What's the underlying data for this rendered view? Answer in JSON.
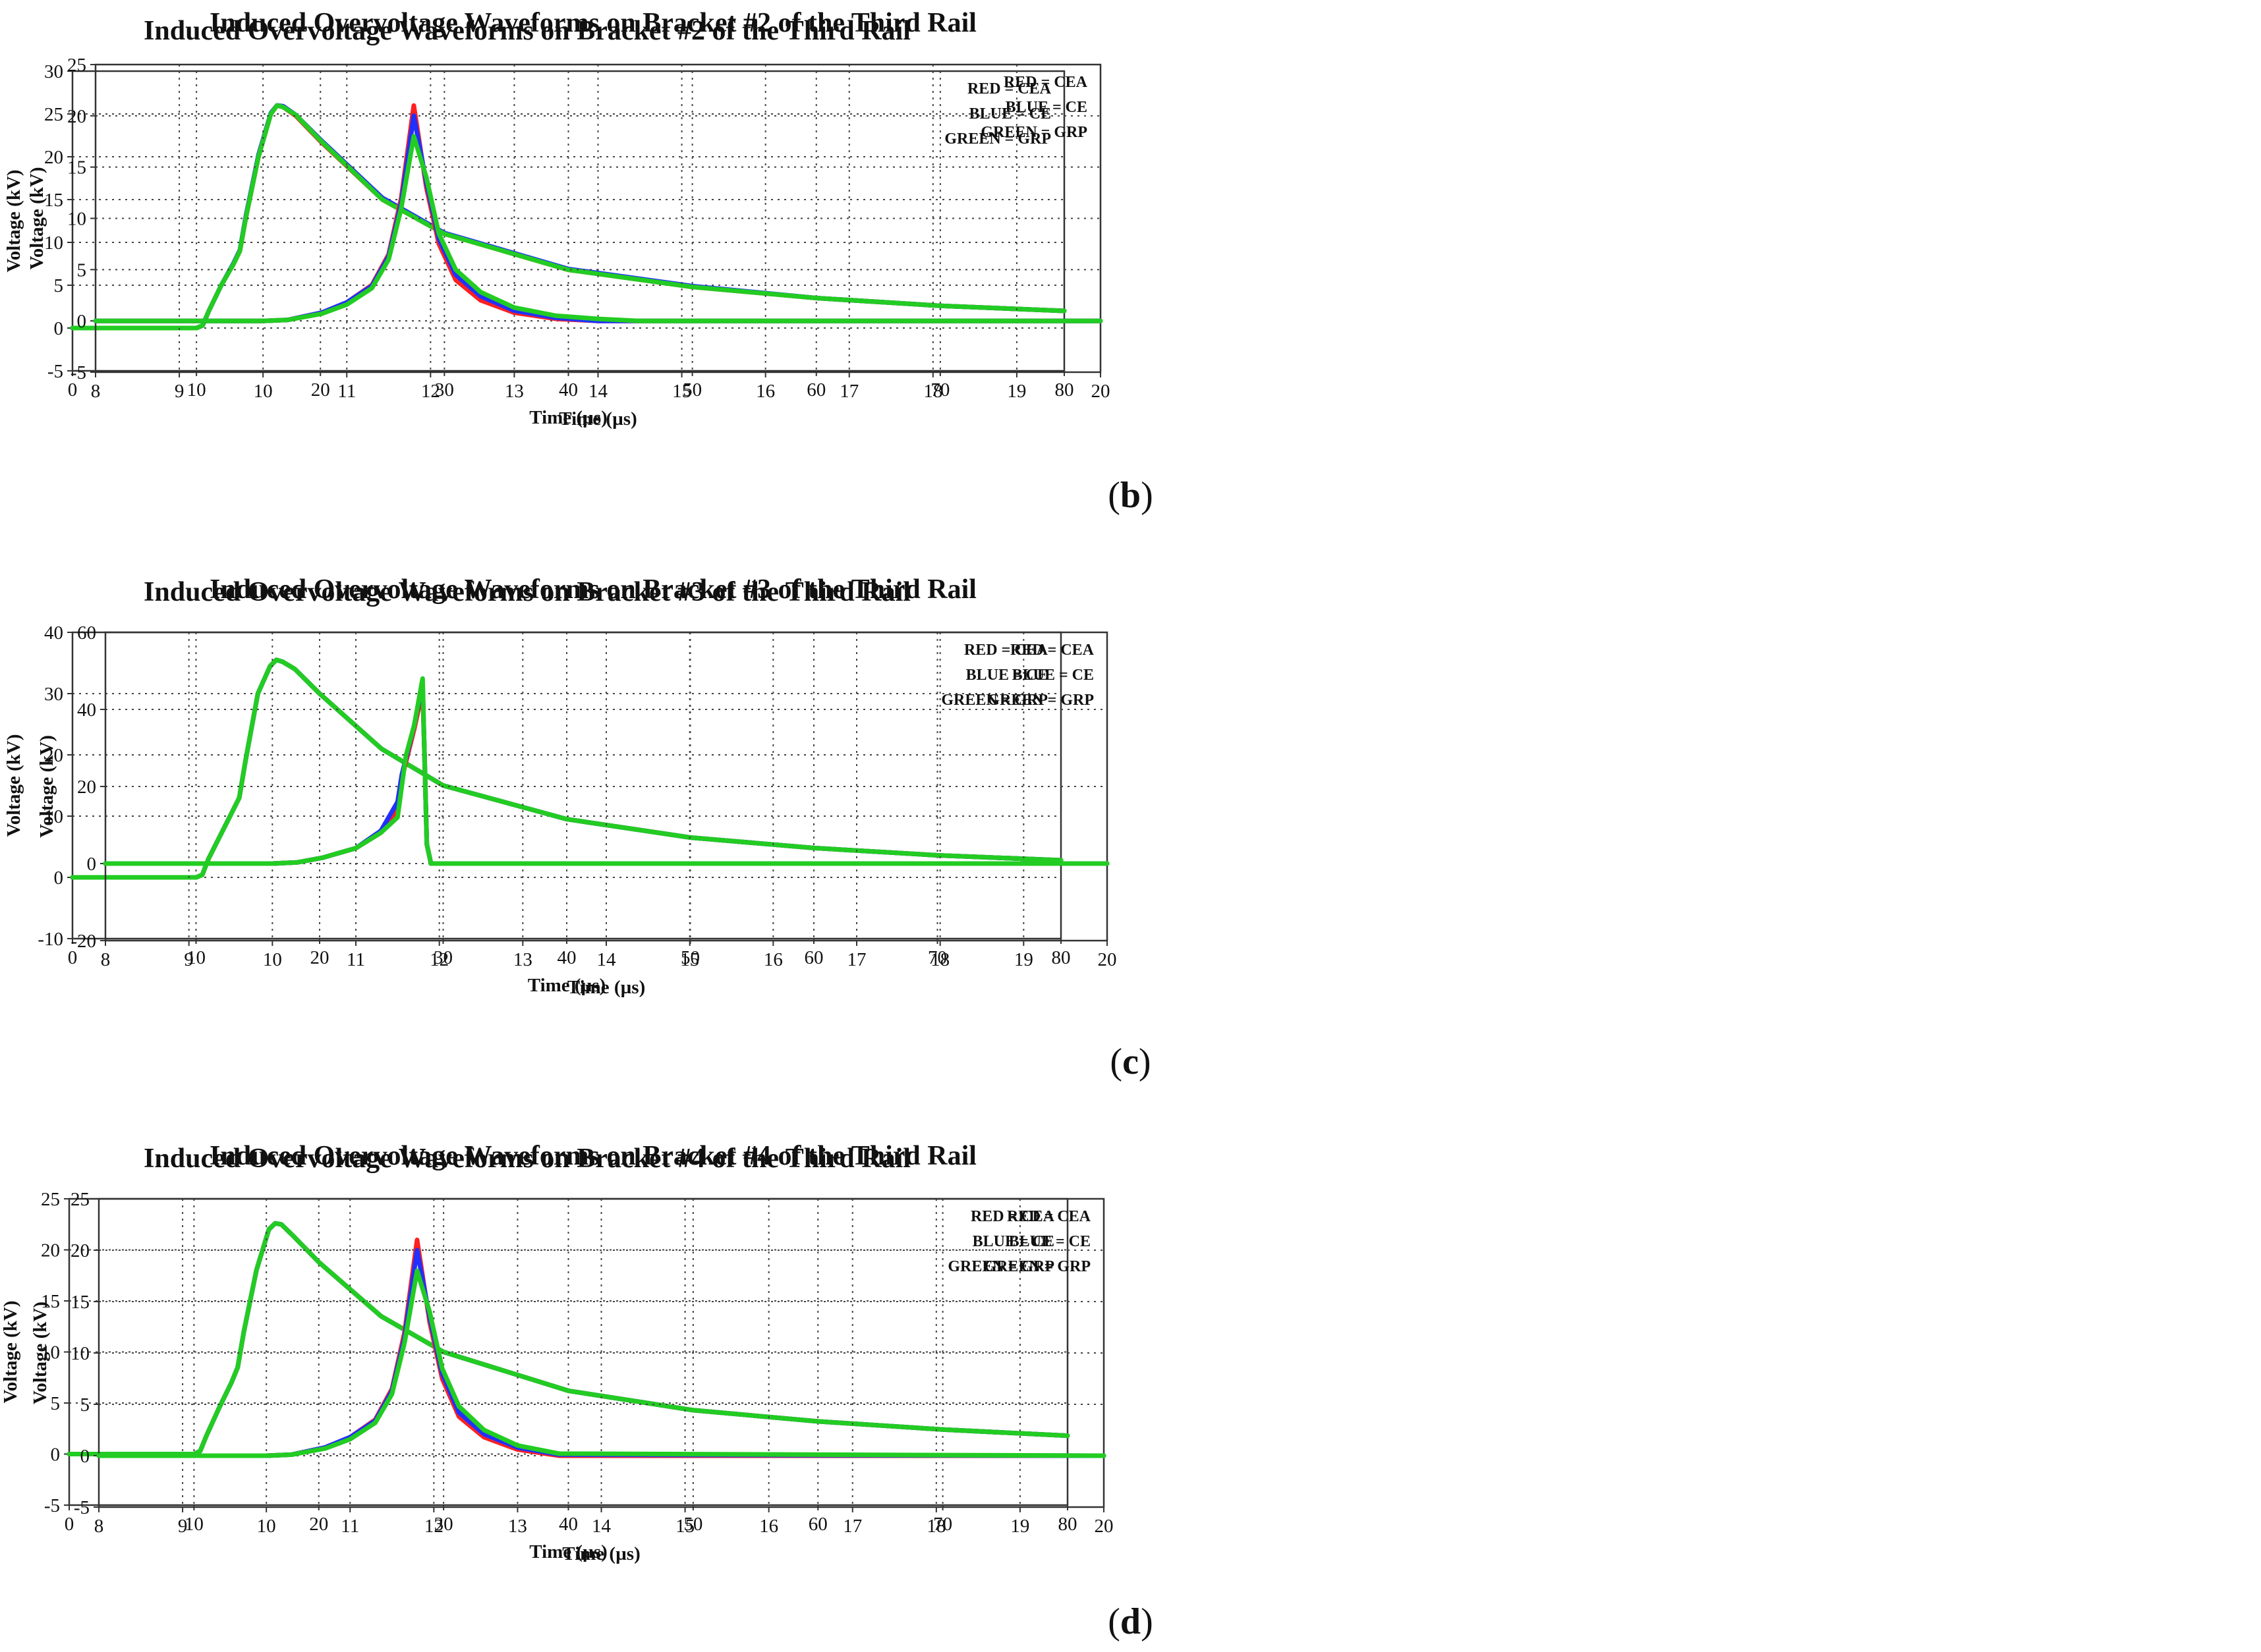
{
  "captions": [
    {
      "open": "(",
      "letter": "b",
      "close": ")"
    },
    {
      "open": "(",
      "letter": "c",
      "close": ")"
    },
    {
      "open": "(",
      "letter": "d",
      "close": ")"
    }
  ],
  "chart_data": [
    {
      "type": "line",
      "title": "Induced Overvoltage Waveforms on Bracket #2 of the Third Rail",
      "xlabel": "Time (µs)",
      "ylabel": "Voltage (kV)",
      "xlim": [
        0,
        80
      ],
      "ylim": [
        -5,
        30
      ],
      "xticks": [
        0,
        10,
        20,
        30,
        40,
        50,
        60,
        70,
        80
      ],
      "yticks": [
        -5,
        0,
        5,
        10,
        15,
        20,
        25,
        30
      ],
      "grid": true,
      "legend": [
        "RED = CEA",
        "BLUE = CE",
        "GREEN = GRP"
      ],
      "series": [
        {
          "name": "CEA",
          "color": "#ff2020",
          "x": [
            0,
            10,
            10.5,
            11,
            12,
            13,
            13.5,
            14,
            15,
            16,
            16.5,
            17,
            18,
            20,
            25,
            30,
            40,
            50,
            60,
            70,
            80
          ],
          "y": [
            0,
            0,
            0.3,
            2,
            5,
            7.5,
            9,
            13,
            20,
            25,
            26,
            25.8,
            24.8,
            21.8,
            15,
            11,
            6.8,
            4.8,
            3.5,
            2.6,
            2
          ]
        },
        {
          "name": "CE",
          "color": "#2030ff",
          "x": [
            0,
            10,
            10.5,
            11,
            12,
            13,
            13.5,
            14,
            15,
            16,
            16.5,
            17,
            18,
            20,
            25,
            30,
            40,
            50,
            60,
            70,
            80
          ],
          "y": [
            0,
            0,
            0.3,
            2,
            5,
            7.6,
            9.1,
            13.2,
            20.2,
            25.1,
            26,
            25.9,
            24.9,
            22,
            15.2,
            11.1,
            6.9,
            4.9,
            3.5,
            2.6,
            2
          ]
        },
        {
          "name": "GRP",
          "color": "#22cc22",
          "x": [
            0,
            10,
            10.5,
            11,
            12,
            13,
            13.5,
            14,
            15,
            16,
            16.5,
            17,
            18,
            20,
            25,
            30,
            40,
            50,
            60,
            70,
            80
          ],
          "y": [
            0,
            0,
            0.3,
            2,
            5,
            7.5,
            9,
            13,
            20,
            25,
            26,
            25.8,
            24.9,
            21.9,
            15,
            11,
            6.8,
            4.8,
            3.5,
            2.6,
            2
          ]
        }
      ]
    },
    {
      "type": "line",
      "title": "Induced Overvoltage Waveforms on Bracket #2 of the Third Rail",
      "xlabel": "Time (µs)",
      "ylabel": "Voltage (kV)",
      "xlim": [
        8,
        20
      ],
      "ylim": [
        -5,
        25
      ],
      "xticks": [
        8,
        9,
        10,
        11,
        12,
        13,
        14,
        15,
        16,
        17,
        18,
        19,
        20
      ],
      "yticks": [
        -5,
        0,
        5,
        10,
        15,
        20,
        25
      ],
      "grid": true,
      "legend": [
        "RED = CEA",
        "BLUE = CE",
        "GREEN = GRP"
      ],
      "series": [
        {
          "name": "CEA",
          "color": "#ff2020",
          "x": [
            8,
            10,
            10.3,
            10.7,
            11,
            11.3,
            11.5,
            11.65,
            11.8,
            11.95,
            12.1,
            12.3,
            12.6,
            13,
            13.5,
            14,
            20
          ],
          "y": [
            0,
            0,
            0.1,
            0.8,
            1.8,
            3.5,
            6.5,
            12,
            21,
            13,
            7.5,
            4,
            2,
            0.8,
            0.2,
            0,
            0
          ]
        },
        {
          "name": "CE",
          "color": "#2030ff",
          "x": [
            8,
            10,
            10.3,
            10.7,
            11,
            11.3,
            11.5,
            11.65,
            11.8,
            11.95,
            12.1,
            12.3,
            12.6,
            13,
            13.5,
            14,
            20
          ],
          "y": [
            0,
            0,
            0.1,
            0.8,
            1.8,
            3.4,
            6.3,
            11.5,
            20,
            13.5,
            8,
            4.5,
            2.4,
            1,
            0.3,
            0,
            0
          ]
        },
        {
          "name": "GRP",
          "color": "#22cc22",
          "x": [
            8,
            10,
            10.3,
            10.7,
            11,
            11.3,
            11.5,
            11.65,
            11.8,
            11.95,
            12.1,
            12.3,
            12.6,
            13,
            13.5,
            14,
            14.5,
            20
          ],
          "y": [
            0,
            0,
            0.1,
            0.7,
            1.6,
            3.2,
            6,
            11,
            18,
            14,
            8.5,
            5,
            2.8,
            1.3,
            0.5,
            0.2,
            0,
            0
          ]
        }
      ]
    },
    {
      "type": "line",
      "title": "Induced Overvoltage Waveforms on Bracket #3 of the Third Rail",
      "xlabel": "Time (µs)",
      "ylabel": "Voltage (kV)",
      "xlim": [
        0,
        80
      ],
      "ylim": [
        -10,
        40
      ],
      "xticks": [
        0,
        10,
        20,
        30,
        40,
        50,
        60,
        70,
        80
      ],
      "yticks": [
        -10,
        0,
        10,
        20,
        30,
        40
      ],
      "grid": true,
      "legend": [
        "RED = CEA",
        "BLUE = CE",
        "GREEN = GRP"
      ],
      "series": [
        {
          "name": "CEA",
          "color": "#ff2020",
          "x": [
            0,
            10,
            10.5,
            11,
            12,
            13,
            13.5,
            14,
            15,
            16,
            16.5,
            17,
            18,
            20,
            25,
            30,
            40,
            50,
            60,
            70,
            80
          ],
          "y": [
            0,
            0,
            0.4,
            3,
            7,
            11,
            13,
            19,
            30,
            34.5,
            35.5,
            35.2,
            34,
            30,
            21,
            15,
            9.5,
            6.5,
            4.8,
            3.6,
            2.8
          ]
        },
        {
          "name": "CE",
          "color": "#2030ff",
          "x": [
            0,
            10,
            10.5,
            11,
            12,
            13,
            13.5,
            14,
            15,
            16,
            16.5,
            17,
            18,
            20,
            25,
            30,
            40,
            50,
            60,
            70,
            80
          ],
          "y": [
            0,
            0,
            0.4,
            3,
            7,
            11,
            13,
            19,
            30,
            34.5,
            35.5,
            35.2,
            34,
            30,
            21,
            15,
            9.5,
            6.5,
            4.8,
            3.6,
            2.8
          ]
        },
        {
          "name": "GRP",
          "color": "#22cc22",
          "x": [
            0,
            10,
            10.5,
            11,
            12,
            13,
            13.5,
            14,
            15,
            16,
            16.5,
            17,
            18,
            20,
            25,
            30,
            40,
            50,
            60,
            70,
            80
          ],
          "y": [
            0,
            0,
            0.4,
            3,
            7,
            11,
            13,
            19,
            30,
            34.5,
            35.5,
            35.2,
            34,
            30,
            21,
            15,
            9.5,
            6.5,
            4.8,
            3.6,
            2.8
          ]
        }
      ]
    },
    {
      "type": "line",
      "title": "Induced Overvoltage Waveforms on Bracket #3 of the Third Rail",
      "xlabel": "Time (µs)",
      "ylabel": "Voltage (kV)",
      "xlim": [
        8,
        20
      ],
      "ylim": [
        -20,
        60
      ],
      "xticks": [
        8,
        9,
        10,
        11,
        12,
        13,
        14,
        15,
        16,
        17,
        18,
        19,
        20
      ],
      "yticks": [
        -20,
        0,
        20,
        40,
        60
      ],
      "grid": true,
      "legend": [
        "RED = CEA",
        "BLUE = CE",
        "GREEN = GRP"
      ],
      "series": [
        {
          "name": "CEA",
          "color": "#ff2020",
          "x": [
            8,
            10,
            10.3,
            10.6,
            11,
            11.3,
            11.5,
            11.55,
            11.7,
            11.8,
            11.82,
            11.85,
            11.9,
            20
          ],
          "y": [
            0,
            0,
            0.3,
            1.5,
            4,
            8,
            14,
            22,
            35,
            45,
            30,
            5,
            0,
            0
          ]
        },
        {
          "name": "CE",
          "color": "#2030ff",
          "x": [
            8,
            10,
            10.3,
            10.6,
            11,
            11.3,
            11.5,
            11.55,
            11.7,
            11.8,
            11.82,
            11.85,
            11.9,
            20
          ],
          "y": [
            0,
            0,
            0.3,
            1.5,
            4,
            8.5,
            16,
            23,
            36,
            47,
            30,
            5,
            0,
            0
          ]
        },
        {
          "name": "GRP",
          "color": "#22cc22",
          "x": [
            8,
            10,
            10.3,
            10.6,
            11,
            11.3,
            11.5,
            11.6,
            11.7,
            11.8,
            11.82,
            11.85,
            11.9,
            20
          ],
          "y": [
            0,
            0,
            0.3,
            1.5,
            4,
            8,
            12,
            28,
            36,
            48,
            30,
            5,
            0,
            0
          ]
        }
      ]
    },
    {
      "type": "line",
      "title": "Induced Overvoltage Waveforms on Bracket #4 of the Third Rail",
      "xlabel": "Time (µs)",
      "ylabel": "Voltage (kV)",
      "xlim": [
        0,
        80
      ],
      "ylim": [
        -5,
        25
      ],
      "xticks": [
        0,
        10,
        20,
        30,
        40,
        50,
        60,
        70,
        80
      ],
      "yticks": [
        -5,
        0,
        5,
        10,
        15,
        20,
        25
      ],
      "grid": true,
      "legend": [
        "RED = CEA",
        "BLUE = CE",
        "GREEN = GRP"
      ],
      "series": [
        {
          "name": "CEA",
          "color": "#ff2020",
          "x": [
            0,
            10,
            10.5,
            11,
            12,
            13,
            13.5,
            14,
            15,
            16,
            16.5,
            17,
            18,
            20,
            25,
            30,
            40,
            50,
            60,
            70,
            80
          ],
          "y": [
            0,
            0,
            0.3,
            1.8,
            4.5,
            7,
            8.5,
            12,
            18,
            22,
            22.6,
            22.5,
            21.3,
            18.8,
            13.5,
            10,
            6.2,
            4.3,
            3.2,
            2.4,
            1.8
          ]
        },
        {
          "name": "CE",
          "color": "#2030ff",
          "x": [
            0,
            10,
            10.5,
            11,
            12,
            13,
            13.5,
            14,
            15,
            16,
            16.5,
            17,
            18,
            20,
            25,
            30,
            40,
            50,
            60,
            70,
            80
          ],
          "y": [
            0,
            0,
            0.3,
            1.8,
            4.5,
            7,
            8.5,
            12,
            18,
            22,
            22.6,
            22.5,
            21.3,
            18.8,
            13.5,
            10,
            6.2,
            4.3,
            3.2,
            2.4,
            1.8
          ]
        },
        {
          "name": "GRP",
          "color": "#22cc22",
          "x": [
            0,
            10,
            10.5,
            11,
            12,
            13,
            13.5,
            14,
            15,
            16,
            16.5,
            17,
            18,
            20,
            25,
            30,
            40,
            50,
            60,
            70,
            80
          ],
          "y": [
            0,
            0,
            0.3,
            1.8,
            4.5,
            7,
            8.5,
            12,
            18,
            22,
            22.6,
            22.5,
            21.3,
            18.8,
            13.5,
            10,
            6.2,
            4.3,
            3.2,
            2.4,
            1.8
          ]
        }
      ]
    },
    {
      "type": "line",
      "title": "Induced Overvoltage Waveforms on Bracket #4 of the Third Rail",
      "xlabel": "Time (µs)",
      "ylabel": "Voltage (kV)",
      "xlim": [
        8,
        20
      ],
      "ylim": [
        -5,
        25
      ],
      "xticks": [
        8,
        9,
        10,
        11,
        12,
        13,
        14,
        15,
        16,
        17,
        18,
        19,
        20
      ],
      "yticks": [
        -5,
        0,
        5,
        10,
        15,
        20,
        25
      ],
      "grid": true,
      "legend": [
        "RED = CEA",
        "BLUE = CE",
        "GREEN = GRP"
      ],
      "series": [
        {
          "name": "CEA",
          "color": "#ff2020",
          "x": [
            8,
            10,
            10.3,
            10.7,
            11,
            11.3,
            11.5,
            11.65,
            11.8,
            11.95,
            12.1,
            12.3,
            12.6,
            13,
            13.5,
            20
          ],
          "y": [
            0,
            0,
            0.1,
            0.8,
            1.8,
            3.5,
            6.5,
            12,
            21,
            13,
            7.5,
            3.8,
            1.8,
            0.6,
            0,
            0
          ]
        },
        {
          "name": "CE",
          "color": "#2030ff",
          "x": [
            8,
            10,
            10.3,
            10.7,
            11,
            11.3,
            11.5,
            11.65,
            11.8,
            11.95,
            12.1,
            12.3,
            12.6,
            13,
            13.5,
            20
          ],
          "y": [
            0,
            0,
            0.1,
            0.8,
            1.8,
            3.4,
            6.3,
            11.5,
            20,
            13.5,
            8,
            4.2,
            2.1,
            0.8,
            0.1,
            0
          ]
        },
        {
          "name": "GRP",
          "color": "#22cc22",
          "x": [
            8,
            10,
            10.3,
            10.7,
            11,
            11.3,
            11.5,
            11.65,
            11.8,
            11.95,
            12.1,
            12.3,
            12.6,
            13,
            13.5,
            20
          ],
          "y": [
            0,
            0,
            0.1,
            0.7,
            1.6,
            3.2,
            6,
            11,
            18,
            14,
            8.5,
            4.8,
            2.5,
            1,
            0.2,
            0
          ]
        }
      ]
    }
  ]
}
